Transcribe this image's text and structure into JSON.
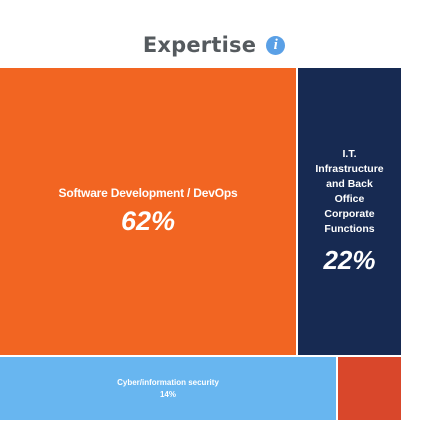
{
  "header": {
    "title": "Expertise",
    "info_icon": "info-icon",
    "info_glyph": "i"
  },
  "chart_data": {
    "type": "treemap",
    "title": "Expertise",
    "items": [
      {
        "id": "software",
        "name": "Software Development / DevOps",
        "name_lines": [
          "Software Development / DevOps"
        ],
        "value": 62,
        "display_value": "62%",
        "color": "#f26522"
      },
      {
        "id": "it",
        "name": "I.T. Infrastructure and Back Office Corporate Functions",
        "name_lines": [
          "I.T.",
          "Infrastructure",
          "and Back",
          "Office",
          "Corporate",
          "Functions"
        ],
        "value": 22,
        "display_value": "22%",
        "color": "#172a52"
      },
      {
        "id": "cyber",
        "name": "Cyber/information security",
        "name_lines": [
          "Cyber/information security"
        ],
        "value": 14,
        "display_value": "14%",
        "color": "#68b6f0"
      },
      {
        "id": "other",
        "value": 2,
        "color": "#d9472b"
      }
    ]
  }
}
